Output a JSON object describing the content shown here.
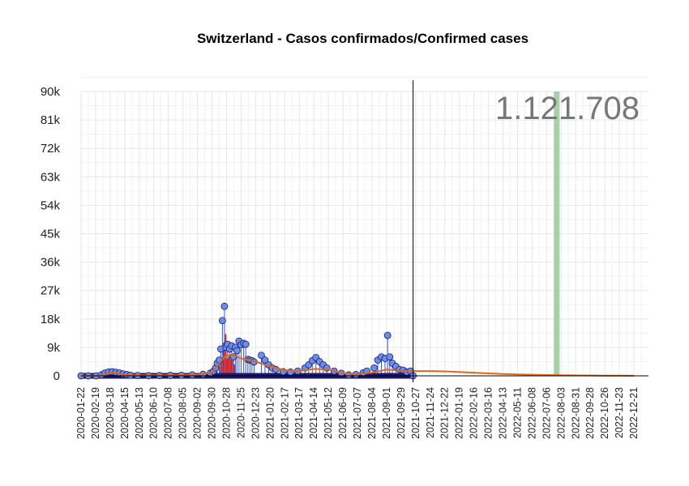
{
  "title": "Switzerland - Casos confirmados/Confirmed cases",
  "total_label": "1.121.708",
  "colors": {
    "point_fill": "#6a8fe8",
    "point_stroke": "#1a1a6e",
    "stem": "#3a55c8",
    "mean_line": "#e0661a",
    "red_bar": "#cc2020",
    "highlight": "#a8d0a8",
    "grid": "#e6e6e6"
  },
  "chart_data": {
    "type": "scatter",
    "title": "Switzerland - Casos confirmados/Confirmed cases",
    "xlabel": "",
    "ylabel": "",
    "ylim": [
      0,
      90000
    ],
    "yticks": [
      0,
      9000,
      18000,
      27000,
      36000,
      45000,
      54000,
      63000,
      72000,
      81000,
      90000
    ],
    "ytick_labels": [
      "0",
      "9k",
      "18k",
      "27k",
      "36k",
      "45k",
      "54k",
      "63k",
      "72k",
      "81k",
      "90k"
    ],
    "xlim": [
      "2020-01-22",
      "2023-01-18"
    ],
    "xticks": [
      "2020-01-22",
      "2020-02-19",
      "2020-03-18",
      "2020-04-15",
      "2020-05-13",
      "2020-06-10",
      "2020-07-08",
      "2020-08-05",
      "2020-09-02",
      "2020-09-30",
      "2020-10-28",
      "2020-11-25",
      "2020-12-23",
      "2021-01-20",
      "2021-02-17",
      "2021-03-17",
      "2021-04-14",
      "2021-05-12",
      "2021-06-09",
      "2021-07-07",
      "2021-08-04",
      "2021-09-01",
      "2021-09-29",
      "2021-10-27",
      "2021-11-24",
      "2021-12-22",
      "2022-01-19",
      "2022-02-16",
      "2022-03-16",
      "2022-04-13",
      "2022-05-11",
      "2022-06-08",
      "2022-07-06",
      "2022-08-03",
      "2022-08-31",
      "2022-09-28",
      "2022-10-26",
      "2022-11-23",
      "2022-12-21"
    ],
    "vertical_line_date": "2021-10-22",
    "highlight_band": [
      "2022-07-20",
      "2022-07-31"
    ],
    "grid": true,
    "total_annotation": "1.121.708",
    "series": [
      {
        "kind": "daily",
        "points": [
          [
            "2020-01-22",
            0
          ],
          [
            "2020-02-05",
            0
          ],
          [
            "2020-02-20",
            0
          ],
          [
            "2020-03-01",
            300
          ],
          [
            "2020-03-08",
            900
          ],
          [
            "2020-03-15",
            1200
          ],
          [
            "2020-03-22",
            1300
          ],
          [
            "2020-03-29",
            1100
          ],
          [
            "2020-04-05",
            900
          ],
          [
            "2020-04-12",
            600
          ],
          [
            "2020-04-19",
            400
          ],
          [
            "2020-04-26",
            200
          ],
          [
            "2020-05-10",
            100
          ],
          [
            "2020-05-31",
            50
          ],
          [
            "2020-06-21",
            80
          ],
          [
            "2020-07-12",
            150
          ],
          [
            "2020-08-02",
            200
          ],
          [
            "2020-08-23",
            300
          ],
          [
            "2020-09-13",
            500
          ],
          [
            "2020-09-27",
            900
          ],
          [
            "2020-10-03",
            1500
          ],
          [
            "2020-10-07",
            2500
          ],
          [
            "2020-10-10",
            4000
          ],
          [
            "2020-10-14",
            5000
          ],
          [
            "2020-10-17",
            8500
          ],
          [
            "2020-10-20",
            17500
          ],
          [
            "2020-10-24",
            22000
          ],
          [
            "2020-10-27",
            9000
          ],
          [
            "2020-10-30",
            10000
          ],
          [
            "2020-11-03",
            8500
          ],
          [
            "2020-11-07",
            9500
          ],
          [
            "2020-11-10",
            6000
          ],
          [
            "2020-11-14",
            9000
          ],
          [
            "2020-11-17",
            8000
          ],
          [
            "2020-11-21",
            11000
          ],
          [
            "2020-11-25",
            9800
          ],
          [
            "2020-11-30",
            10300
          ],
          [
            "2020-12-04",
            10000
          ],
          [
            "2020-12-08",
            5200
          ],
          [
            "2020-12-12",
            5000
          ],
          [
            "2020-12-16",
            4800
          ],
          [
            "2020-12-20",
            4400
          ],
          [
            "2021-01-03",
            6500
          ],
          [
            "2021-01-10",
            5000
          ],
          [
            "2021-01-17",
            3500
          ],
          [
            "2021-01-24",
            2500
          ],
          [
            "2021-01-31",
            2000
          ],
          [
            "2021-02-14",
            1300
          ],
          [
            "2021-02-28",
            1200
          ],
          [
            "2021-03-14",
            1500
          ],
          [
            "2021-03-28",
            2500
          ],
          [
            "2021-04-04",
            3500
          ],
          [
            "2021-04-11",
            4800
          ],
          [
            "2021-04-18",
            5800
          ],
          [
            "2021-04-25",
            4500
          ],
          [
            "2021-05-02",
            3500
          ],
          [
            "2021-05-09",
            2500
          ],
          [
            "2021-05-23",
            1500
          ],
          [
            "2021-06-06",
            800
          ],
          [
            "2021-06-20",
            300
          ],
          [
            "2021-07-04",
            400
          ],
          [
            "2021-07-18",
            1000
          ],
          [
            "2021-07-25",
            1500
          ],
          [
            "2021-08-08",
            2500
          ],
          [
            "2021-08-15",
            5000
          ],
          [
            "2021-08-22",
            6000
          ],
          [
            "2021-08-29",
            5500
          ],
          [
            "2021-09-03",
            12800
          ],
          [
            "2021-09-07",
            6000
          ],
          [
            "2021-09-12",
            4000
          ],
          [
            "2021-09-19",
            3000
          ],
          [
            "2021-09-26",
            2000
          ],
          [
            "2021-10-03",
            1800
          ],
          [
            "2021-10-10",
            1200
          ],
          [
            "2021-10-17",
            1500
          ],
          [
            "2021-10-22",
            0
          ]
        ]
      },
      {
        "kind": "mean",
        "points": [
          [
            "2020-01-22",
            0
          ],
          [
            "2020-03-01",
            100
          ],
          [
            "2020-03-18",
            1000
          ],
          [
            "2020-03-29",
            900
          ],
          [
            "2020-04-15",
            300
          ],
          [
            "2020-05-13",
            150
          ],
          [
            "2020-08-05",
            250
          ],
          [
            "2020-09-02",
            400
          ],
          [
            "2020-09-30",
            1000
          ],
          [
            "2020-10-10",
            3000
          ],
          [
            "2020-10-24",
            6000
          ],
          [
            "2020-11-07",
            6800
          ],
          [
            "2020-11-25",
            5500
          ],
          [
            "2020-12-23",
            4500
          ],
          [
            "2021-01-20",
            3000
          ],
          [
            "2021-02-17",
            1800
          ],
          [
            "2021-03-17",
            1500
          ],
          [
            "2021-04-14",
            2200
          ],
          [
            "2021-05-12",
            2000
          ],
          [
            "2021-06-09",
            800
          ],
          [
            "2021-07-07",
            500
          ],
          [
            "2021-08-04",
            1000
          ],
          [
            "2021-09-01",
            2000
          ],
          [
            "2021-09-29",
            1600
          ],
          [
            "2021-10-27",
            1500
          ],
          [
            "2021-11-24",
            1500
          ],
          [
            "2021-12-22",
            1400
          ],
          [
            "2022-02-16",
            1000
          ],
          [
            "2022-04-13",
            600
          ],
          [
            "2022-06-08",
            350
          ],
          [
            "2022-08-03",
            200
          ],
          [
            "2022-10-26",
            80
          ],
          [
            "2022-12-21",
            30
          ]
        ]
      }
    ]
  }
}
